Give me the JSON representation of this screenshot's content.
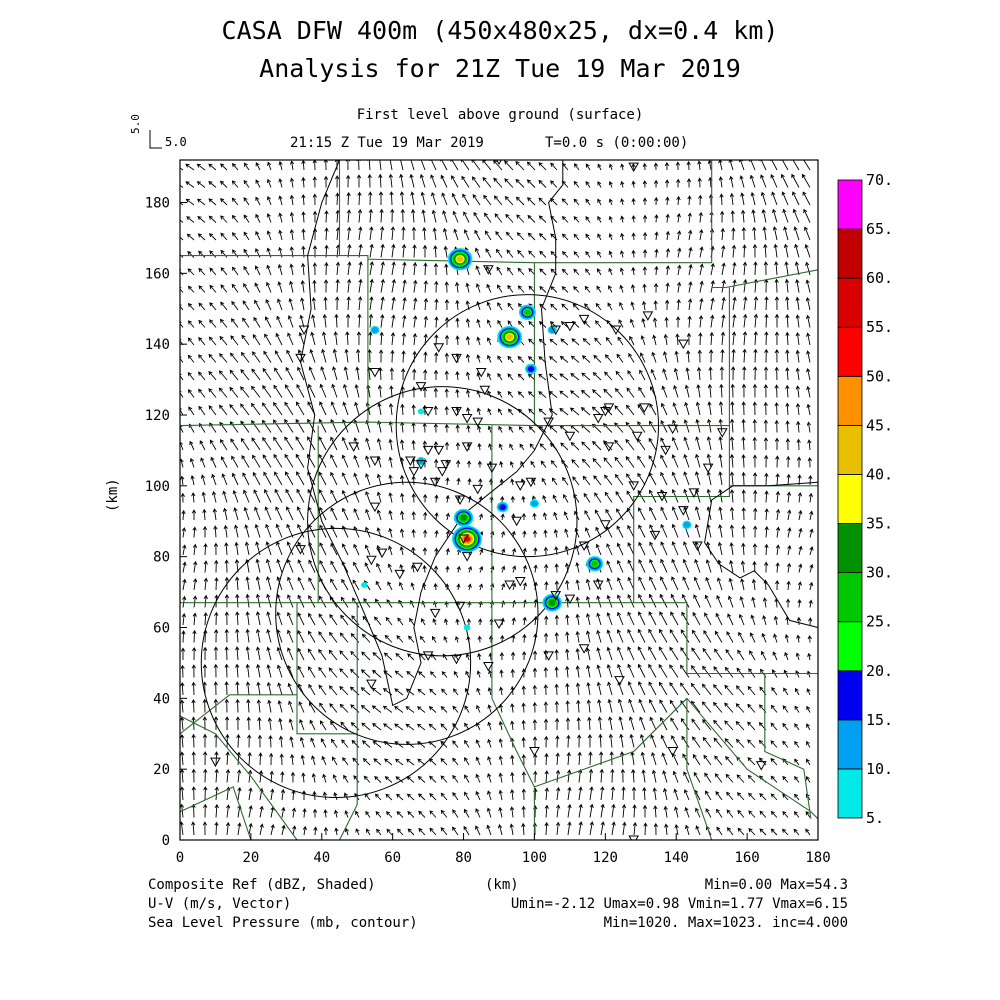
{
  "header": {
    "title_line1": "CASA DFW 400m (450x480x25, dx=0.4 km)",
    "title_line2": "Analysis for 21Z Tue 19 Mar 2019",
    "subtitle": "First level above ground (surface)",
    "valid_time": "21:15 Z Tue 19 Mar 2019",
    "model_time": "T=0.0 s (0:00:00)",
    "vector_scale_value": "5.0",
    "vector_scale_key": "5.0"
  },
  "footer": {
    "left_line1": "Composite Ref (dBZ, Shaded)",
    "left_line2": "U-V (m/s, Vector)",
    "left_line3": "Sea Level Pressure (mb, contour)",
    "right_line1": "Min=0.00 Max=54.3",
    "right_line2": "Umin=-2.12 Umax=0.98 Vmin=1.77 Vmax=6.15",
    "right_line3": "Min=1020. Max=1023. inc=4.000"
  },
  "colors": {
    "boundary": "#2e6b2e",
    "contour": "#000000",
    "vector": "#000000"
  },
  "chart_data": {
    "type": "heatmap",
    "title": "CASA DFW 400m (450x480x25, dx=0.4 km)",
    "xlabel": "(km)",
    "ylabel": "(km)",
    "xlim": [
      0,
      180
    ],
    "ylim": [
      0,
      192
    ],
    "x_ticks": [
      0,
      20,
      40,
      60,
      80,
      100,
      120,
      140,
      160,
      180
    ],
    "y_ticks": [
      0,
      20,
      40,
      60,
      80,
      100,
      120,
      140,
      160,
      180
    ],
    "grid": false,
    "legend_placement": "right",
    "colorbar": {
      "levels": [
        "5.",
        "10.",
        "15.",
        "20.",
        "25.",
        "30.",
        "35.",
        "40.",
        "45.",
        "50.",
        "55.",
        "60.",
        "65.",
        "70."
      ],
      "colors": [
        "#00e8e8",
        "#00a0f0",
        "#0000f0",
        "#00ff00",
        "#00c800",
        "#009000",
        "#ffff00",
        "#e8c000",
        "#ff9000",
        "#ff0000",
        "#d80000",
        "#c00000",
        "#ff00ff"
      ]
    },
    "radar_range_rings_km": [
      {
        "center": [
          44,
          50
        ],
        "radius": 38
      },
      {
        "center": [
          64,
          64
        ],
        "radius": 37
      },
      {
        "center": [
          74,
          90
        ],
        "radius": 38
      },
      {
        "center": [
          98,
          117
        ],
        "radius": 37
      }
    ],
    "reflectivity_cells": [
      {
        "x": 79,
        "y": 164,
        "dbz": 40
      },
      {
        "x": 55,
        "y": 144,
        "dbz": 12
      },
      {
        "x": 98,
        "y": 149,
        "dbz": 25
      },
      {
        "x": 93,
        "y": 142,
        "dbz": 40
      },
      {
        "x": 99,
        "y": 133,
        "dbz": 15
      },
      {
        "x": 105,
        "y": 144,
        "dbz": 10
      },
      {
        "x": 68,
        "y": 107,
        "dbz": 12
      },
      {
        "x": 80,
        "y": 91,
        "dbz": 30
      },
      {
        "x": 81,
        "y": 85,
        "dbz": 54
      },
      {
        "x": 91,
        "y": 94,
        "dbz": 15
      },
      {
        "x": 100,
        "y": 95,
        "dbz": 12
      },
      {
        "x": 117,
        "y": 78,
        "dbz": 25
      },
      {
        "x": 105,
        "y": 67,
        "dbz": 30
      },
      {
        "x": 143,
        "y": 89,
        "dbz": 12
      },
      {
        "x": 81,
        "y": 60,
        "dbz": 8
      },
      {
        "x": 52,
        "y": 72,
        "dbz": 6
      },
      {
        "x": 68,
        "y": 121,
        "dbz": 8
      }
    ],
    "station_markers_km": [
      [
        35,
        144
      ],
      [
        34,
        136
      ],
      [
        55,
        132
      ],
      [
        68,
        128
      ],
      [
        73,
        139
      ],
      [
        78,
        136
      ],
      [
        85,
        132
      ],
      [
        86,
        127
      ],
      [
        78,
        121
      ],
      [
        81,
        119
      ],
      [
        84,
        118
      ],
      [
        70,
        121
      ],
      [
        87,
        161
      ],
      [
        114,
        147
      ],
      [
        123,
        144
      ],
      [
        132,
        148
      ],
      [
        142,
        140
      ],
      [
        106,
        144
      ],
      [
        110,
        145
      ],
      [
        120,
        121
      ],
      [
        118,
        119
      ],
      [
        121,
        122
      ],
      [
        129,
        114
      ],
      [
        131,
        122
      ],
      [
        139,
        116
      ],
      [
        136,
        97
      ],
      [
        128,
        100
      ],
      [
        121,
        111
      ],
      [
        137,
        110
      ],
      [
        153,
        115
      ],
      [
        149,
        105
      ],
      [
        145,
        98
      ],
      [
        146,
        83
      ],
      [
        142,
        93
      ],
      [
        134,
        86
      ],
      [
        120,
        89
      ],
      [
        114,
        83
      ],
      [
        118,
        72
      ],
      [
        114,
        54
      ],
      [
        124,
        45
      ],
      [
        110,
        68
      ],
      [
        104,
        52
      ],
      [
        106,
        69
      ],
      [
        96,
        73
      ],
      [
        93,
        72
      ],
      [
        90,
        61
      ],
      [
        79,
        66
      ],
      [
        78,
        51
      ],
      [
        87,
        49
      ],
      [
        70,
        52
      ],
      [
        72,
        64
      ],
      [
        80,
        85
      ],
      [
        81,
        80
      ],
      [
        79,
        96
      ],
      [
        73,
        110
      ],
      [
        74,
        104
      ],
      [
        72,
        101
      ],
      [
        75,
        106
      ],
      [
        68,
        106
      ],
      [
        70,
        110
      ],
      [
        65,
        107
      ],
      [
        66,
        104
      ],
      [
        55,
        107
      ],
      [
        49,
        111
      ],
      [
        55,
        94
      ],
      [
        57,
        81
      ],
      [
        54,
        79
      ],
      [
        62,
        75
      ],
      [
        67,
        77
      ],
      [
        34,
        82
      ],
      [
        54,
        44
      ],
      [
        95,
        90
      ],
      [
        96,
        100
      ],
      [
        99,
        101
      ],
      [
        104,
        118
      ],
      [
        84,
        99
      ],
      [
        81,
        111
      ],
      [
        88,
        105
      ],
      [
        90,
        192
      ],
      [
        128,
        190
      ],
      [
        110,
        114
      ],
      [
        139,
        25
      ],
      [
        100,
        25
      ],
      [
        164,
        21
      ],
      [
        10,
        22
      ],
      [
        128,
        0
      ]
    ]
  }
}
